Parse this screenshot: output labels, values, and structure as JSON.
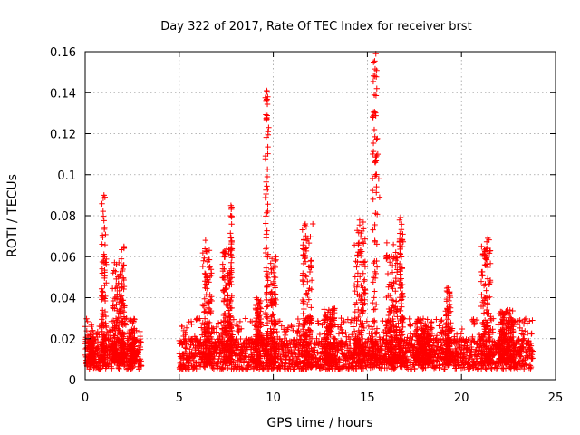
{
  "chart_data": {
    "type": "scatter",
    "title": "Day 322 of 2017, Rate Of TEC Index for receiver brst",
    "xlabel": "GPS time / hours",
    "ylabel": "ROTI / TECUs",
    "xlim": [
      0,
      25
    ],
    "ylim": [
      0,
      0.16
    ],
    "xticks": [
      0,
      5,
      10,
      15,
      20,
      25
    ],
    "yticks": [
      0,
      0.02,
      0.04,
      0.06,
      0.08,
      0.1,
      0.12,
      0.14,
      0.16
    ],
    "ytick_labels": [
      "0",
      "0.02",
      "0.04",
      "0.06",
      "0.08",
      "0.1",
      "0.12",
      "0.14",
      "0.16"
    ],
    "grid": true,
    "marker": "plus",
    "color": "#ff0000",
    "background_band": {
      "segments": [
        [
          0.0,
          3.0
        ],
        [
          5.0,
          23.8
        ]
      ],
      "base_y": [
        0.005,
        0.02
      ],
      "noise_ymax": 0.03
    },
    "bursts": [
      {
        "x": 0.35,
        "width": 0.3,
        "ymax": 0.02
      },
      {
        "x": 1.0,
        "width": 0.25,
        "ymax": 0.09
      },
      {
        "x": 1.7,
        "width": 0.5,
        "ymax": 0.058
      },
      {
        "x": 2.0,
        "width": 0.2,
        "ymax": 0.068
      },
      {
        "x": 2.5,
        "width": 0.3,
        "ymax": 0.03
      },
      {
        "x": 6.5,
        "width": 0.5,
        "ymax": 0.068
      },
      {
        "x": 7.5,
        "width": 0.4,
        "ymax": 0.065
      },
      {
        "x": 7.75,
        "width": 0.1,
        "ymax": 0.085
      },
      {
        "x": 9.2,
        "width": 0.3,
        "ymax": 0.04
      },
      {
        "x": 9.65,
        "width": 0.15,
        "ymax": 0.141
      },
      {
        "x": 10.0,
        "width": 0.3,
        "ymax": 0.06
      },
      {
        "x": 11.8,
        "width": 0.5,
        "ymax": 0.076
      },
      {
        "x": 13.0,
        "width": 0.6,
        "ymax": 0.035
      },
      {
        "x": 14.6,
        "width": 0.6,
        "ymax": 0.078
      },
      {
        "x": 15.4,
        "width": 0.25,
        "ymax": 0.159
      },
      {
        "x": 16.3,
        "width": 0.6,
        "ymax": 0.068
      },
      {
        "x": 16.8,
        "width": 0.2,
        "ymax": 0.084
      },
      {
        "x": 18.0,
        "width": 0.8,
        "ymax": 0.03
      },
      {
        "x": 19.3,
        "width": 0.3,
        "ymax": 0.045
      },
      {
        "x": 21.3,
        "width": 0.5,
        "ymax": 0.069
      },
      {
        "x": 22.4,
        "width": 0.8,
        "ymax": 0.035
      }
    ],
    "isolated_points": [
      [
        9.65,
        0.141
      ],
      [
        9.7,
        0.138
      ],
      [
        9.75,
        0.123
      ],
      [
        9.72,
        0.121
      ],
      [
        9.68,
        0.099
      ],
      [
        9.7,
        0.093
      ],
      [
        15.45,
        0.159
      ],
      [
        15.4,
        0.148
      ],
      [
        15.5,
        0.142
      ],
      [
        15.55,
        0.11
      ],
      [
        15.6,
        0.098
      ],
      [
        15.65,
        0.089
      ],
      [
        7.75,
        0.085
      ],
      [
        1.0,
        0.09
      ],
      [
        1.05,
        0.089
      ],
      [
        19.3,
        0.045
      ],
      [
        21.4,
        0.069
      ],
      [
        11.7,
        0.076
      ],
      [
        12.1,
        0.076
      ]
    ]
  }
}
